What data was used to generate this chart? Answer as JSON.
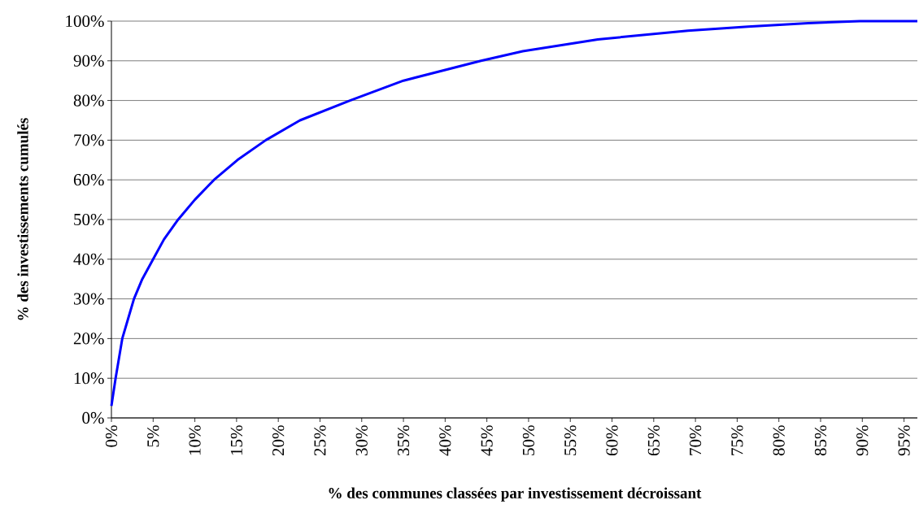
{
  "chart_data": {
    "type": "line",
    "xlabel": "% des communes classées par investissement décroissant",
    "ylabel": "% des investissements cumulés",
    "series": [
      {
        "color": "#0000ff",
        "x": [
          0,
          0.5,
          1.3,
          2.0,
          2.7,
          3.7,
          5.0,
          6.3,
          8.0,
          10.0,
          12.3,
          15.1,
          18.5,
          22.6,
          28.6,
          35,
          44.3,
          49.3,
          58.3,
          69.1,
          76.3,
          83.5,
          89.7,
          96.6
        ],
        "values": [
          3,
          10,
          20,
          25,
          30,
          35,
          40,
          45,
          50,
          55,
          60,
          65,
          70,
          75,
          80,
          85,
          90,
          92.4,
          95.4,
          97.6,
          98.6,
          99.5,
          100,
          100
        ]
      }
    ],
    "xlim": [
      0,
      96.6
    ],
    "ylim": [
      0,
      100
    ],
    "xticks": [
      {
        "value": 0,
        "label": "0%"
      },
      {
        "value": 5,
        "label": "5%"
      },
      {
        "value": 10,
        "label": "10%"
      },
      {
        "value": 15,
        "label": "15%"
      },
      {
        "value": 20,
        "label": "20%"
      },
      {
        "value": 25,
        "label": "25%"
      },
      {
        "value": 30,
        "label": "30%"
      },
      {
        "value": 35,
        "label": "35%"
      },
      {
        "value": 40,
        "label": "40%"
      },
      {
        "value": 45,
        "label": "45%"
      },
      {
        "value": 50,
        "label": "50%"
      },
      {
        "value": 55,
        "label": "55%"
      },
      {
        "value": 60,
        "label": "60%"
      },
      {
        "value": 65,
        "label": "65%"
      },
      {
        "value": 70,
        "label": "70%"
      },
      {
        "value": 75,
        "label": "75%"
      },
      {
        "value": 80,
        "label": "80%"
      },
      {
        "value": 85,
        "label": "85%"
      },
      {
        "value": 90,
        "label": "90%"
      },
      {
        "value": 95,
        "label": "95%"
      }
    ],
    "yticks": [
      {
        "value": 0,
        "label": "0%"
      },
      {
        "value": 10,
        "label": "10%"
      },
      {
        "value": 20,
        "label": "20%"
      },
      {
        "value": 30,
        "label": "30%"
      },
      {
        "value": 40,
        "label": "40%"
      },
      {
        "value": 50,
        "label": "50%"
      },
      {
        "value": 60,
        "label": "60%"
      },
      {
        "value": 70,
        "label": "70%"
      },
      {
        "value": 80,
        "label": "80%"
      },
      {
        "value": 90,
        "label": "90%"
      },
      {
        "value": 100,
        "label": "100%"
      }
    ],
    "grid": "y",
    "marker": "none",
    "line_style": "solid"
  }
}
